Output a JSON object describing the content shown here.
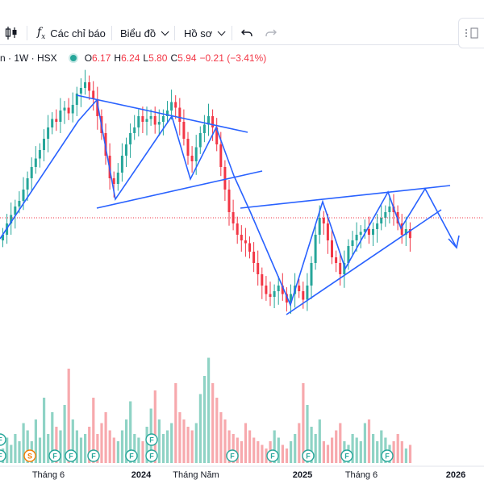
{
  "toolbar": {
    "indicators_label": "Các chỉ báo",
    "chart_menu_label": "Biểu đồ",
    "profile_menu_label": "Hồ sơ"
  },
  "legend": {
    "symbol": "n · 1W · HSX",
    "open_key": "O",
    "open": "6.17",
    "high_key": "H",
    "high": "6.24",
    "low_key": "L",
    "low": "5.80",
    "close_key": "C",
    "close": "5.94",
    "change": "−0.21 (−3.41%)"
  },
  "colors": {
    "up": "#26a69a",
    "down": "#f23645",
    "trend": "#2962ff",
    "vol_up": "#8fd3c5",
    "vol_down": "#f7a9ad",
    "event_badge": "#26a69a"
  },
  "x_axis": [
    "Tháng 6",
    "2024",
    "Tháng Năm",
    "2025",
    "Tháng 6",
    "2026"
  ],
  "event_badges": [
    "F",
    "F",
    "S",
    "F",
    "F",
    "F",
    "F",
    "F",
    "F",
    "F",
    "F",
    "F",
    "F",
    "F"
  ],
  "price_series": {
    "description_levels": "weekly closes, approximate",
    "closes": [
      6.0,
      6.2,
      6.35,
      6.5,
      6.6,
      6.8,
      7.0,
      7.2,
      7.35,
      7.5,
      7.7,
      7.9,
      8.05,
      8.0,
      8.2,
      8.25,
      8.15,
      8.3,
      8.5,
      8.6,
      8.7,
      8.55,
      8.4,
      8.1,
      7.8,
      7.4,
      7.0,
      6.9,
      7.1,
      7.4,
      7.6,
      7.8,
      7.9,
      8.1,
      8.0,
      8.05,
      8.1,
      7.95,
      8.0,
      8.1,
      8.2,
      8.35,
      8.25,
      8.0,
      7.7,
      7.4,
      7.3,
      7.55,
      7.8,
      7.95,
      8.1,
      7.9,
      7.6,
      7.2,
      6.8,
      6.4,
      6.2,
      6.0,
      5.9,
      5.85,
      5.7,
      5.5,
      5.3,
      5.1,
      4.95,
      4.9,
      5.0,
      5.1,
      4.95,
      4.8,
      4.95,
      5.1,
      5.0,
      4.85,
      5.1,
      5.5,
      6.0,
      6.3,
      6.2,
      5.9,
      5.6,
      5.5,
      5.3,
      5.5,
      5.8,
      5.9,
      6.0,
      6.05,
      6.1,
      6.0,
      6.1,
      6.2,
      6.3,
      6.4,
      6.5,
      6.4,
      6.2,
      6.0,
      6.1,
      5.94
    ]
  },
  "volume_series": [
    20,
    35,
    25,
    40,
    30,
    55,
    45,
    30,
    60,
    35,
    90,
    40,
    70,
    50,
    45,
    80,
    130,
    60,
    45,
    35,
    40,
    50,
    90,
    40,
    55,
    70,
    45,
    35,
    30,
    45,
    60,
    85,
    40,
    35,
    30,
    50,
    75,
    100,
    60,
    40,
    45,
    55,
    110,
    70,
    60,
    50,
    45,
    55,
    95,
    120,
    145,
    110,
    90,
    70,
    60,
    45,
    40,
    35,
    30,
    55,
    45,
    35,
    30,
    25,
    20,
    30,
    45,
    35,
    25,
    20,
    30,
    40,
    55,
    110,
    80,
    50,
    40,
    60,
    30,
    25,
    35,
    45,
    55,
    30,
    25,
    40,
    35,
    30,
    55,
    60,
    40,
    30,
    45,
    35,
    25,
    30,
    40,
    30,
    20,
    25
  ]
}
